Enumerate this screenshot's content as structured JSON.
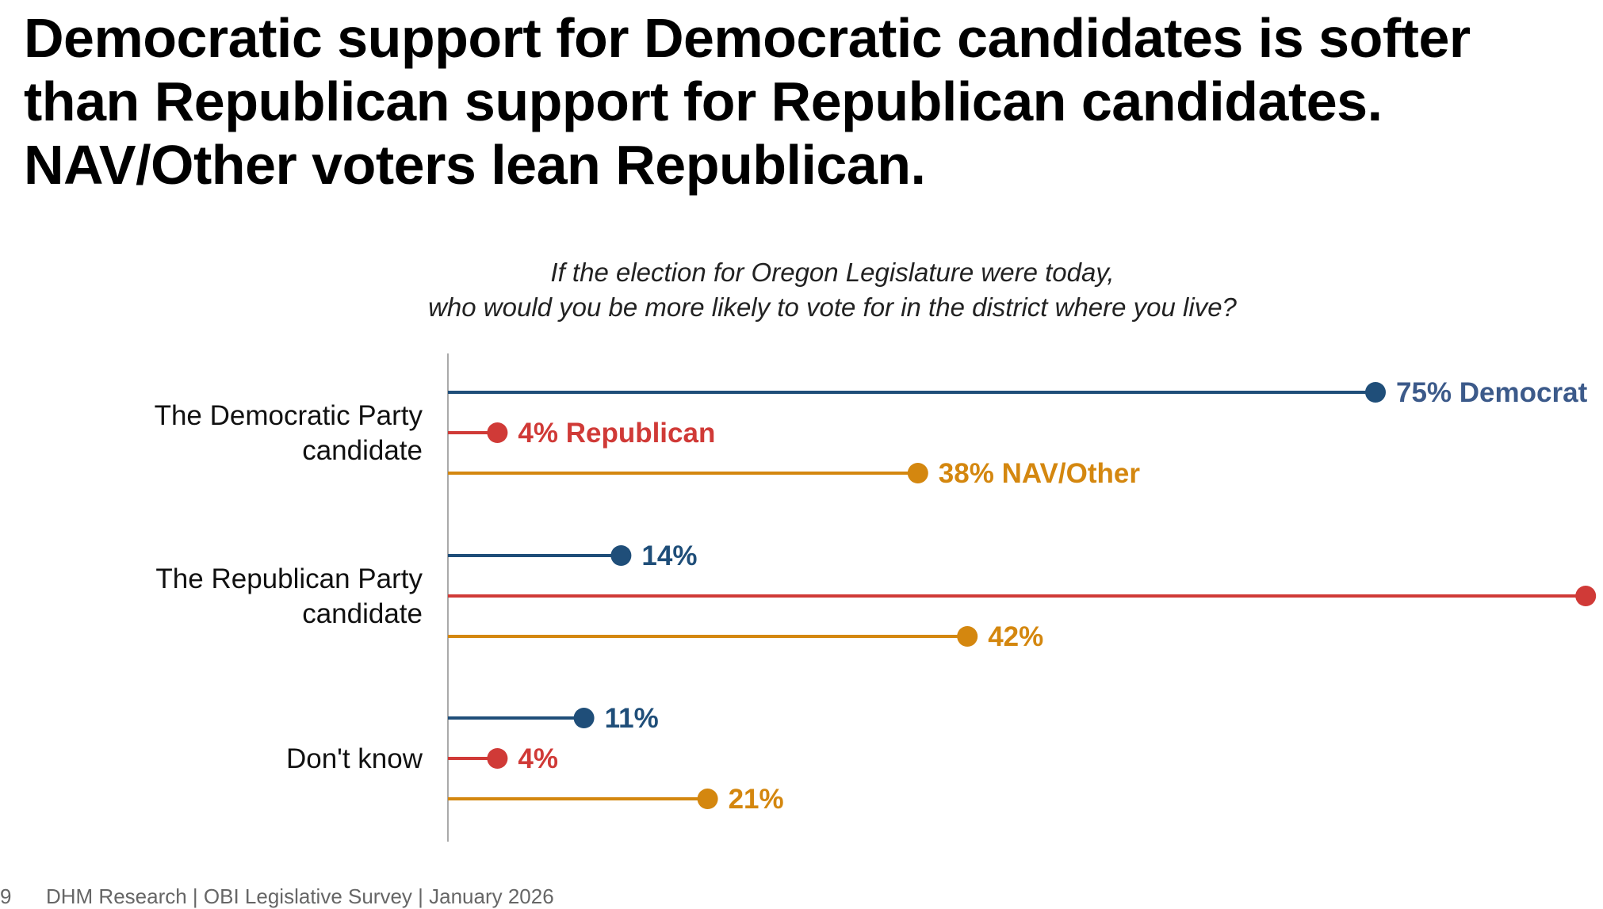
{
  "headline": {
    "line1": "Democratic support for Democratic candidates is softer",
    "line2": "than Republican support for Republican candidates.",
    "line3": "NAV/Other voters lean Republican."
  },
  "question": {
    "line1": "If the election for Oregon Legislature were today,",
    "line2": "who would you be more likely to vote for in the district where you live?"
  },
  "footer": {
    "page_number": "9",
    "source": "DHM Research | OBI Legislative Survey | January 2026"
  },
  "colors": {
    "democrat": "#1f4e79",
    "republican": "#d03a37",
    "nav_other": "#d4870f",
    "axis": "#aaaaaa",
    "democrat_label_first": "#3c5a8a"
  },
  "chart_data": {
    "type": "lollipop",
    "title": "If the election for Oregon Legislature were today, who would you be more likely to vote for in the district where you live?",
    "categories": [
      [
        "The Democratic Party",
        "candidate"
      ],
      [
        "The Republican Party",
        "candidate"
      ],
      [
        "Don't know"
      ]
    ],
    "series": [
      {
        "name": "Democrat",
        "legend_label": "Democrat",
        "color_key": "democrat",
        "values": [
          75,
          14,
          11
        ]
      },
      {
        "name": "Republican",
        "legend_label": "Republican",
        "color_key": "republican",
        "values": [
          4,
          92,
          4
        ]
      },
      {
        "name": "NAV/Other",
        "legend_label": "NAV/Other",
        "color_key": "nav_other",
        "values": [
          38,
          42,
          21
        ]
      }
    ],
    "value_suffix": "%",
    "xlim": [
      0,
      100
    ],
    "legend": "inline labels on first group"
  }
}
